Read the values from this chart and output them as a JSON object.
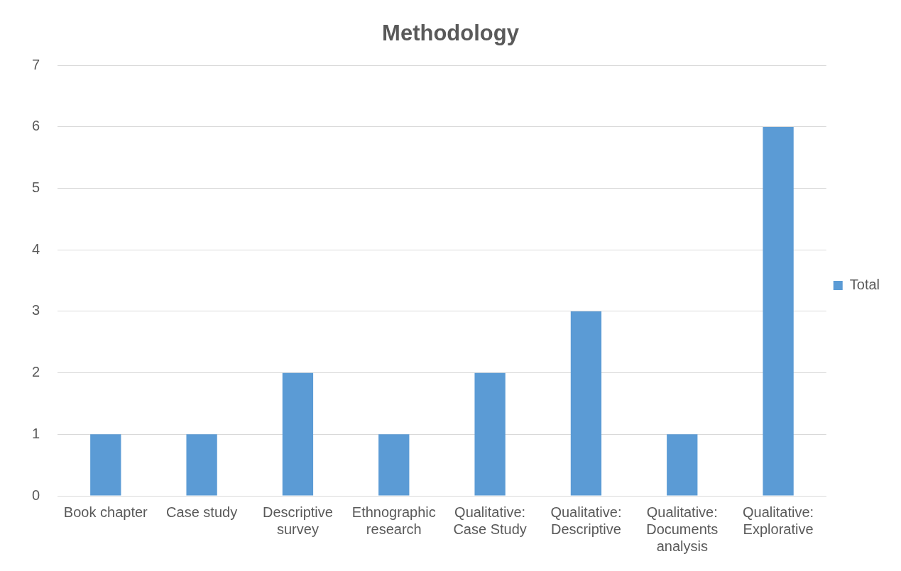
{
  "chart_data": {
    "type": "bar",
    "title": "Methodology",
    "categories": [
      "Book chapter",
      "Case study",
      "Descriptive survey",
      "Ethnographic research",
      "Qualitative: Case Study",
      "Qualitative: Descriptive",
      "Qualitative: Documents analysis",
      "Qualitative: Explorative"
    ],
    "series": [
      {
        "name": "Total",
        "color": "#5b9bd5",
        "values": [
          1,
          1,
          2,
          1,
          2,
          3,
          1,
          6
        ]
      }
    ],
    "ylim": [
      0,
      7
    ],
    "yticks": [
      0,
      1,
      2,
      3,
      4,
      5,
      6,
      7
    ],
    "grid": "y",
    "legend": "right"
  }
}
